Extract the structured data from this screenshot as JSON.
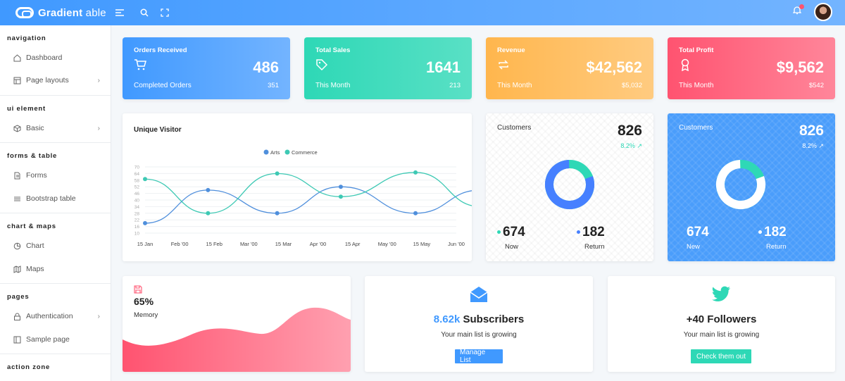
{
  "header": {
    "brand_bold": "Gradient",
    "brand_light": " able",
    "icons": [
      "menu-icon",
      "search-icon",
      "fullscreen-icon",
      "bell-icon"
    ]
  },
  "sidebar": {
    "sections": [
      {
        "title": "navigation",
        "items": [
          {
            "label": "Dashboard",
            "icon": "home-icon"
          },
          {
            "label": "Page layouts",
            "icon": "layout-icon",
            "chevron": true
          }
        ]
      },
      {
        "title": "ui element",
        "items": [
          {
            "label": "Basic",
            "icon": "box-icon",
            "chevron": true
          }
        ]
      },
      {
        "title": "forms & table",
        "items": [
          {
            "label": "Forms",
            "icon": "file-icon"
          },
          {
            "label": "Bootstrap table",
            "icon": "list-icon"
          }
        ]
      },
      {
        "title": "chart & maps",
        "items": [
          {
            "label": "Chart",
            "icon": "pie-icon"
          },
          {
            "label": "Maps",
            "icon": "map-icon"
          }
        ]
      },
      {
        "title": "pages",
        "items": [
          {
            "label": "Authentication",
            "icon": "lock-icon",
            "chevron": true
          },
          {
            "label": "Sample page",
            "icon": "sidebar-icon"
          }
        ]
      },
      {
        "title": "action zone",
        "items": []
      }
    ]
  },
  "stats": [
    {
      "title": "Orders Received",
      "value": "486",
      "sub": "Completed Orders",
      "sub_value": "351",
      "icon": "cart-icon"
    },
    {
      "title": "Total Sales",
      "value": "1641",
      "sub": "This Month",
      "sub_value": "213",
      "icon": "tag-icon"
    },
    {
      "title": "Revenue",
      "value": "$42,562",
      "sub": "This Month",
      "sub_value": "$5,032",
      "icon": "repeat-icon"
    },
    {
      "title": "Total Profit",
      "value": "$9,562",
      "sub": "This Month",
      "sub_value": "$542",
      "icon": "award-icon"
    }
  ],
  "visitor_chart": {
    "title": "Unique Visitor",
    "chart_data": {
      "type": "line",
      "categories": [
        "15 Jan",
        "Feb '00",
        "15 Feb",
        "Mar '00",
        "15 Mar",
        "Apr '00",
        "15 Apr",
        "May '00",
        "15 May",
        "Jun '00"
      ],
      "series": [
        {
          "name": "Arts",
          "color": "#4f8fdc",
          "x": [
            0,
            1.82,
            3.82,
            5.66,
            7.82,
            9.7
          ],
          "y": [
            19,
            49,
            28,
            52,
            28,
            49
          ]
        },
        {
          "name": "Commerce",
          "color": "#3ec9b4",
          "x": [
            0,
            1.82,
            3.82,
            5.66,
            7.82,
            9.7
          ],
          "y": [
            59,
            28,
            64,
            43,
            65,
            34
          ]
        }
      ],
      "ylim": [
        10,
        70
      ],
      "yticks": [
        10,
        16,
        22,
        28,
        34,
        40,
        46,
        52,
        58,
        64,
        70
      ],
      "legend": "top-center"
    }
  },
  "customers": [
    {
      "title": "Customers",
      "value": "826",
      "pct": "8.2%",
      "new_value": "674",
      "new_label": "Now",
      "ret_value": "182",
      "ret_label": "Return",
      "donut": {
        "primary": 0.8,
        "secondary": 0.2
      }
    },
    {
      "title": "Customers",
      "value": "826",
      "pct": "8.2%",
      "new_value": "674",
      "new_label": "New",
      "ret_value": "182",
      "ret_label": "Return",
      "donut": {
        "primary": 0.8,
        "secondary": 0.2
      }
    }
  ],
  "memory": {
    "pct": "65%",
    "label": "Memory",
    "icon": "save-icon"
  },
  "subscribers": {
    "accent": "8.62k",
    "rest": " Subscribers",
    "text": "Your main list is growing",
    "button": "Manage List",
    "icon": "mail-open-icon"
  },
  "followers": {
    "headline": "+40 Followers",
    "text": "Your main list is growing",
    "button": "Check them out",
    "icon": "twitter-icon"
  }
}
